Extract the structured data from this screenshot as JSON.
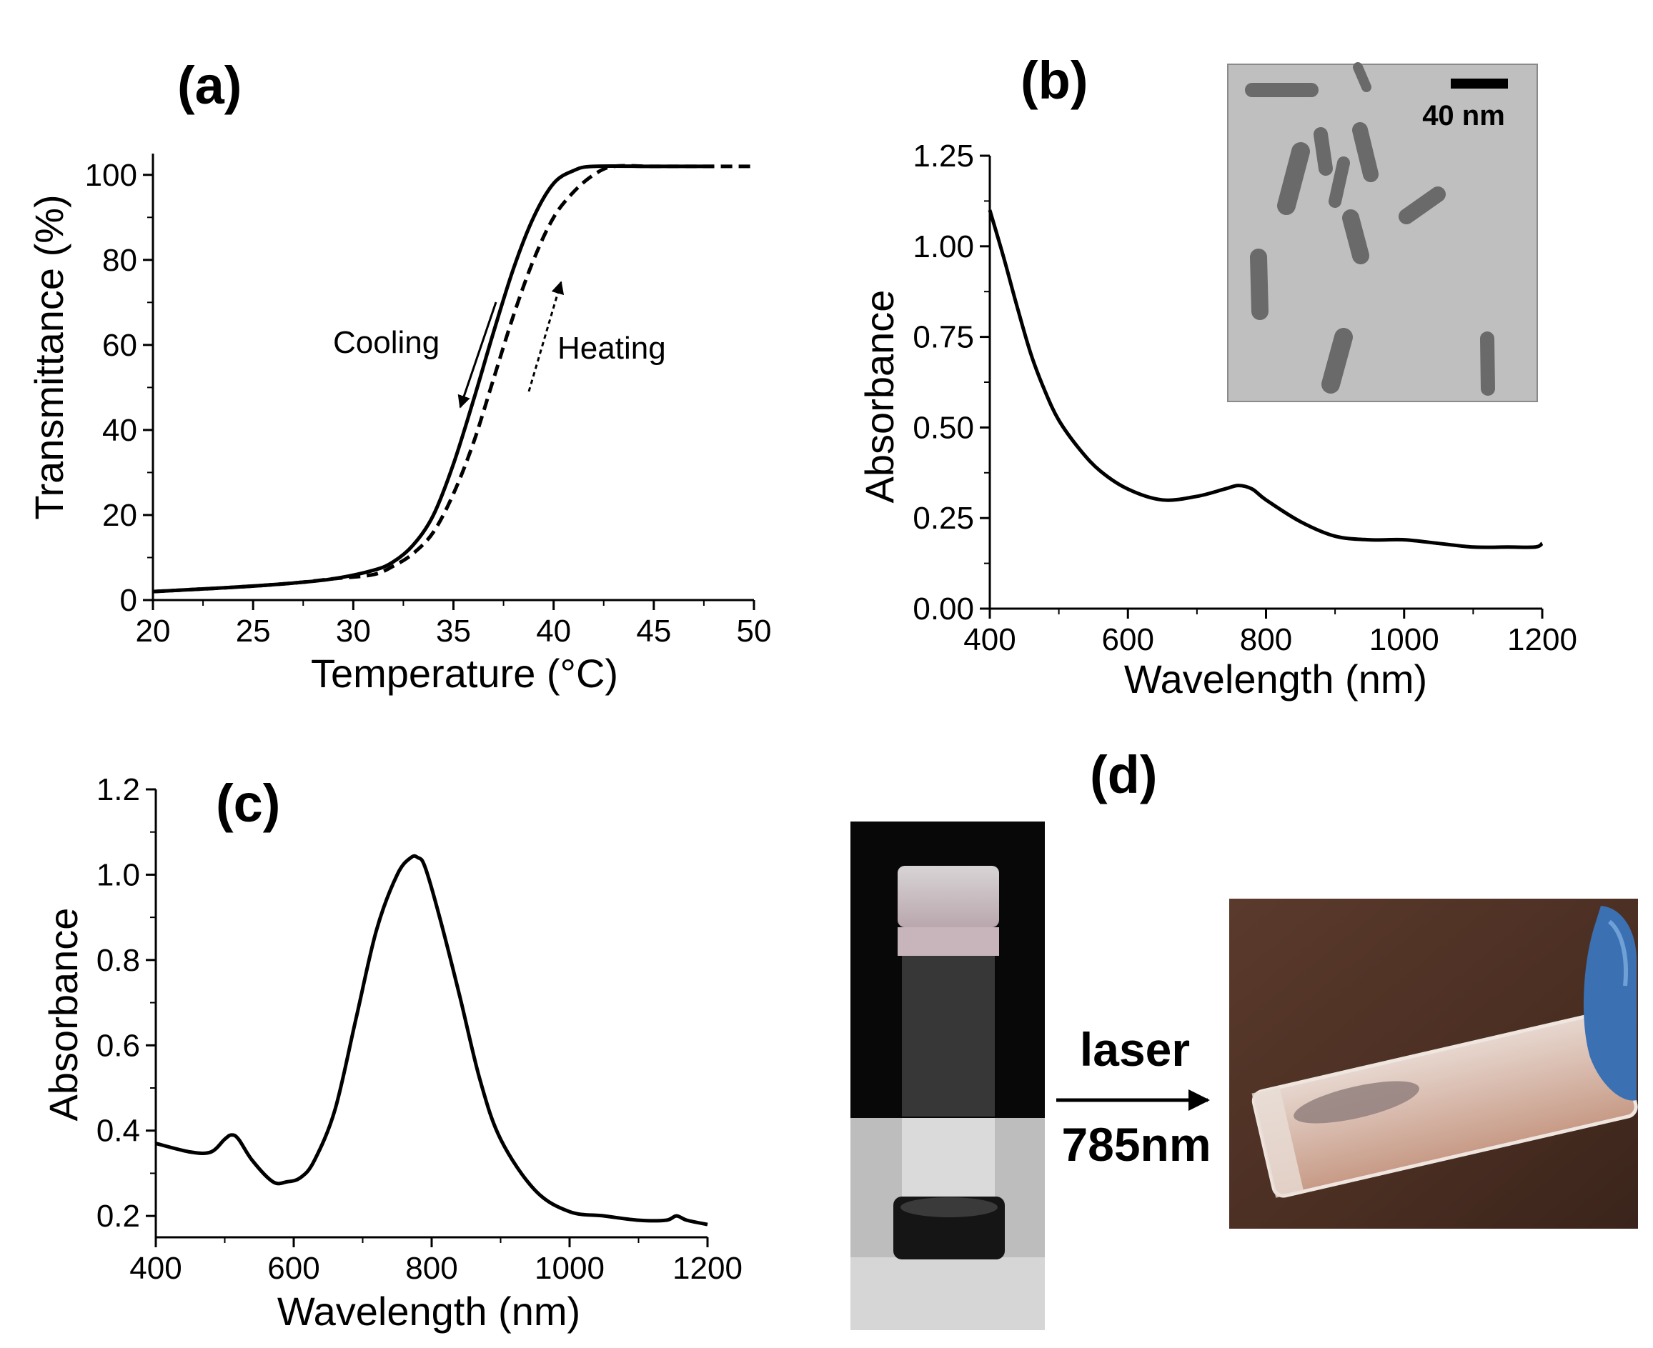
{
  "chart_data": [
    {
      "panel": "(a)",
      "type": "line",
      "xlabel": "Temperature (°C)",
      "ylabel": "Transmittance (%)",
      "xlim": [
        20,
        50
      ],
      "ylim": [
        0,
        105
      ],
      "xticks": [
        20,
        25,
        30,
        35,
        40,
        45,
        50
      ],
      "yticks": [
        0,
        20,
        40,
        60,
        80,
        100
      ],
      "annotations": [
        "Cooling",
        "Heating"
      ],
      "series": [
        {
          "style": "solid",
          "x": [
            20,
            24,
            27,
            29,
            31,
            32,
            33,
            34,
            35,
            36,
            37,
            38,
            39,
            40,
            41,
            42,
            45,
            48
          ],
          "y": [
            2,
            3,
            4,
            5,
            7,
            9,
            13,
            20,
            32,
            47,
            63,
            78,
            90,
            98,
            101,
            102,
            102,
            102
          ]
        },
        {
          "style": "dashed",
          "x": [
            20,
            24,
            27,
            29,
            31,
            32,
            33,
            34,
            35,
            36,
            37,
            38,
            39,
            40,
            41,
            42,
            43,
            45,
            47,
            50
          ],
          "y": [
            2,
            3,
            4,
            5,
            6,
            8,
            11,
            16,
            25,
            37,
            52,
            67,
            80,
            90,
            96,
            100,
            102,
            102,
            102,
            102
          ]
        }
      ]
    },
    {
      "panel": "(b)",
      "type": "line",
      "xlabel": "Wavelength (nm)",
      "ylabel": "Absorbance",
      "xlim": [
        400,
        1200
      ],
      "ylim": [
        0,
        1.25
      ],
      "xticks": [
        400,
        600,
        800,
        1000,
        1200
      ],
      "yticks": [
        "0.00",
        "0.25",
        "0.50",
        "0.75",
        "1.00",
        "1.25"
      ],
      "series": [
        {
          "x": [
            400,
            420,
            440,
            460,
            480,
            500,
            530,
            560,
            600,
            650,
            700,
            740,
            760,
            780,
            800,
            850,
            900,
            950,
            1000,
            1050,
            1100,
            1150,
            1190,
            1200
          ],
          "y": [
            1.1,
            0.97,
            0.83,
            0.7,
            0.6,
            0.52,
            0.44,
            0.38,
            0.33,
            0.3,
            0.31,
            0.33,
            0.34,
            0.33,
            0.3,
            0.24,
            0.2,
            0.19,
            0.19,
            0.18,
            0.17,
            0.17,
            0.17,
            0.18
          ]
        }
      ],
      "inset": {
        "scale_bar_label": "40 nm"
      }
    },
    {
      "panel": "(c)",
      "type": "line",
      "xlabel": "Wavelength (nm)",
      "ylabel": "Absorbance",
      "xlim": [
        400,
        1200
      ],
      "ylim": [
        0.15,
        1.2
      ],
      "xticks": [
        400,
        600,
        800,
        1000,
        1200
      ],
      "yticks": [
        "0.2",
        "0.4",
        "0.6",
        "0.8",
        "1.0",
        "1.2"
      ],
      "series": [
        {
          "x": [
            400,
            450,
            480,
            500,
            510,
            520,
            540,
            570,
            590,
            610,
            630,
            660,
            690,
            720,
            750,
            770,
            780,
            790,
            810,
            840,
            870,
            900,
            950,
            1000,
            1050,
            1100,
            1140,
            1155,
            1170,
            1200
          ],
          "y": [
            0.37,
            0.35,
            0.35,
            0.38,
            0.39,
            0.38,
            0.33,
            0.28,
            0.28,
            0.29,
            0.33,
            0.45,
            0.66,
            0.87,
            1.0,
            1.04,
            1.04,
            1.02,
            0.91,
            0.72,
            0.52,
            0.38,
            0.26,
            0.21,
            0.2,
            0.19,
            0.19,
            0.2,
            0.19,
            0.18
          ]
        }
      ]
    }
  ],
  "panel_d": {
    "panel": "(d)",
    "arrow_label_top": "laser",
    "arrow_label_bottom": "785nm"
  }
}
